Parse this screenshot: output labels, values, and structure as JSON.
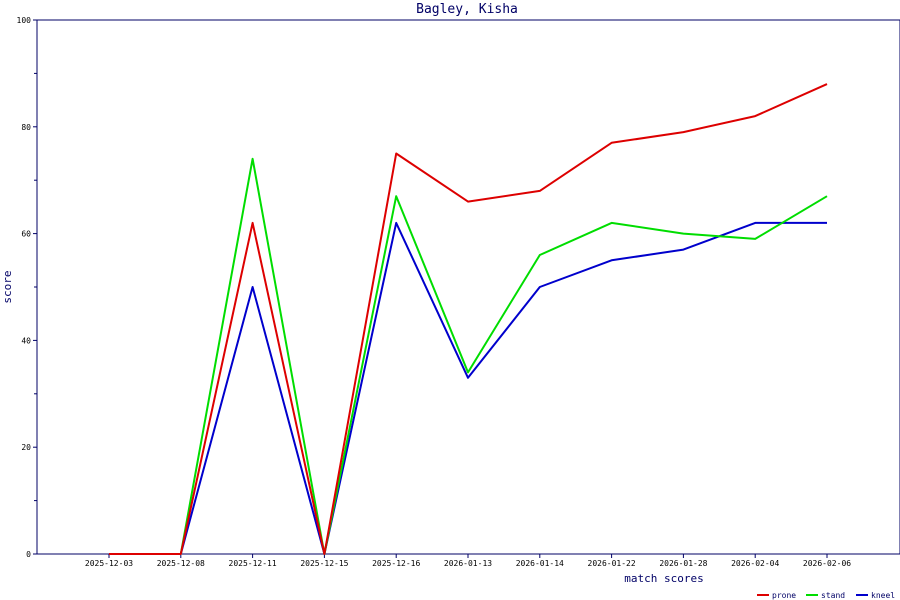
{
  "chart_data": {
    "type": "line",
    "title": "Bagley, Kisha",
    "xlabel": "match scores",
    "ylabel": "score",
    "ylim": [
      0,
      100
    ],
    "yticks": [
      0,
      20,
      40,
      60,
      80,
      100
    ],
    "grid": false,
    "legend_position": "bottom-right",
    "categories": [
      "2025-12-03",
      "2025-12-08",
      "2025-12-11",
      "2025-12-15",
      "2025-12-16",
      "2026-01-13",
      "2026-01-14",
      "2026-01-22",
      "2026-01-28",
      "2026-02-04",
      "2026-02-06"
    ],
    "series": [
      {
        "name": "prone",
        "color": "#dd0000",
        "values": [
          0,
          0,
          62,
          0,
          75,
          66,
          68,
          77,
          79,
          82,
          88
        ]
      },
      {
        "name": "stand",
        "color": "#00dd00",
        "values": [
          0,
          0,
          74,
          0,
          67,
          34,
          56,
          62,
          60,
          59,
          67
        ]
      },
      {
        "name": "kneel",
        "color": "#0000cc",
        "values": [
          0,
          0,
          50,
          0,
          62,
          33,
          50,
          55,
          57,
          62,
          62
        ]
      }
    ]
  }
}
